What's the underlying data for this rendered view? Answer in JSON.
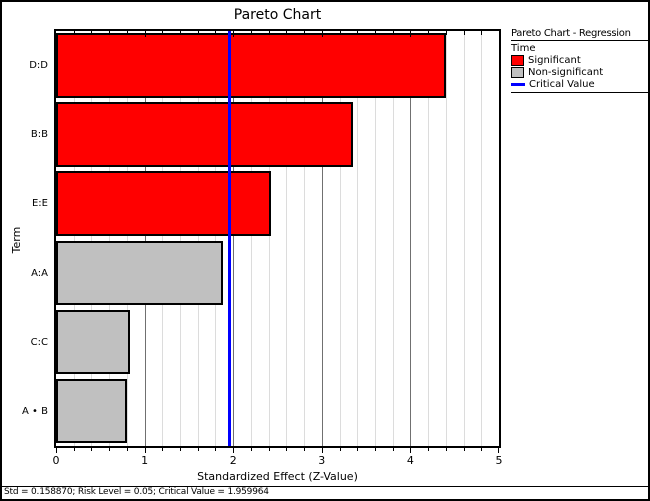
{
  "window": {
    "title": "Pareto Chart"
  },
  "status_bar": {
    "text": "Std = 0.158870; Risk Level = 0.05; Critical Value = 1.959964"
  },
  "legend": {
    "title": "Pareto Chart - Regression",
    "response": "Time",
    "items": [
      {
        "label": "Significant",
        "swatch": "significant-swatch",
        "color": "#ff0000"
      },
      {
        "label": "Non-significant",
        "swatch": "non-significant-swatch",
        "color": "#c0c0c0"
      },
      {
        "label": "Critical Value",
        "swatch": "critical-value-line-swatch",
        "color": "#0000ff"
      }
    ]
  },
  "chart_data": {
    "type": "bar",
    "orientation": "horizontal",
    "title": "Pareto Chart",
    "xlabel": "Standardized Effect (Z-Value)",
    "ylabel": "Term",
    "categories": [
      "D:D",
      "B:B",
      "E:E",
      "A:A",
      "C:C",
      "A • B"
    ],
    "series": [
      {
        "name": "Standardized Effect (Z-Value)",
        "values": [
          4.4,
          3.35,
          2.43,
          1.89,
          0.84,
          0.8
        ]
      }
    ],
    "significant": [
      true,
      true,
      true,
      false,
      false,
      false
    ],
    "critical_value": 1.959964,
    "xlim": [
      0,
      5
    ],
    "x_major_ticks": [
      0,
      1,
      2,
      3,
      4,
      5
    ],
    "x_minor_tick_step": 0.2,
    "grid": "vertical-minor-and-major",
    "legend_position": "top-right",
    "colors": {
      "significant": "#ff0000",
      "non_significant": "#c0c0c0",
      "critical_line": "#0000ff",
      "grid_major": "#707070",
      "grid_minor": "#dcdcdc",
      "bar_border": "#000000"
    }
  }
}
